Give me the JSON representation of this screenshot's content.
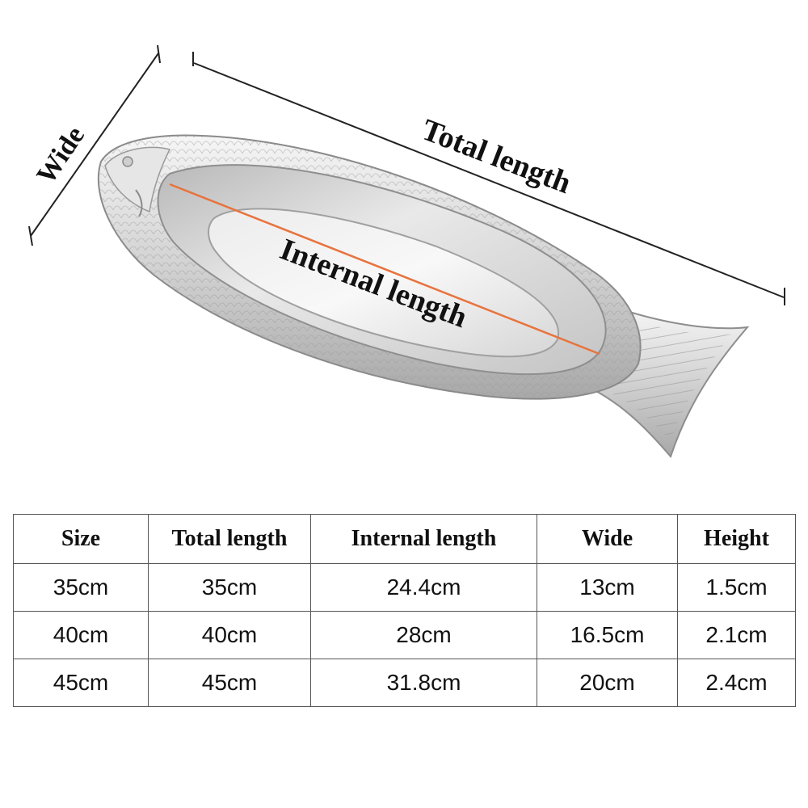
{
  "figure": {
    "labels": {
      "wide": "Wide",
      "total_length": "Total length",
      "internal_length": "Internal length"
    },
    "colors": {
      "internal_line": "#e8733e",
      "dimension_line": "#222222",
      "metal_light": "#f4f4f4",
      "metal_mid": "#cfcfcf",
      "metal_dark": "#9a9a9a"
    },
    "icons": [
      "fish-plate-icon"
    ]
  },
  "table": {
    "headers": [
      "Size",
      "Total length",
      "Internal length",
      "Wide",
      "Height"
    ],
    "rows": [
      [
        "35cm",
        "35cm",
        "24.4cm",
        "13cm",
        "1.5cm"
      ],
      [
        "40cm",
        "40cm",
        "28cm",
        "16.5cm",
        "2.1cm"
      ],
      [
        "45cm",
        "45cm",
        "31.8cm",
        "20cm",
        "2.4cm"
      ]
    ]
  }
}
